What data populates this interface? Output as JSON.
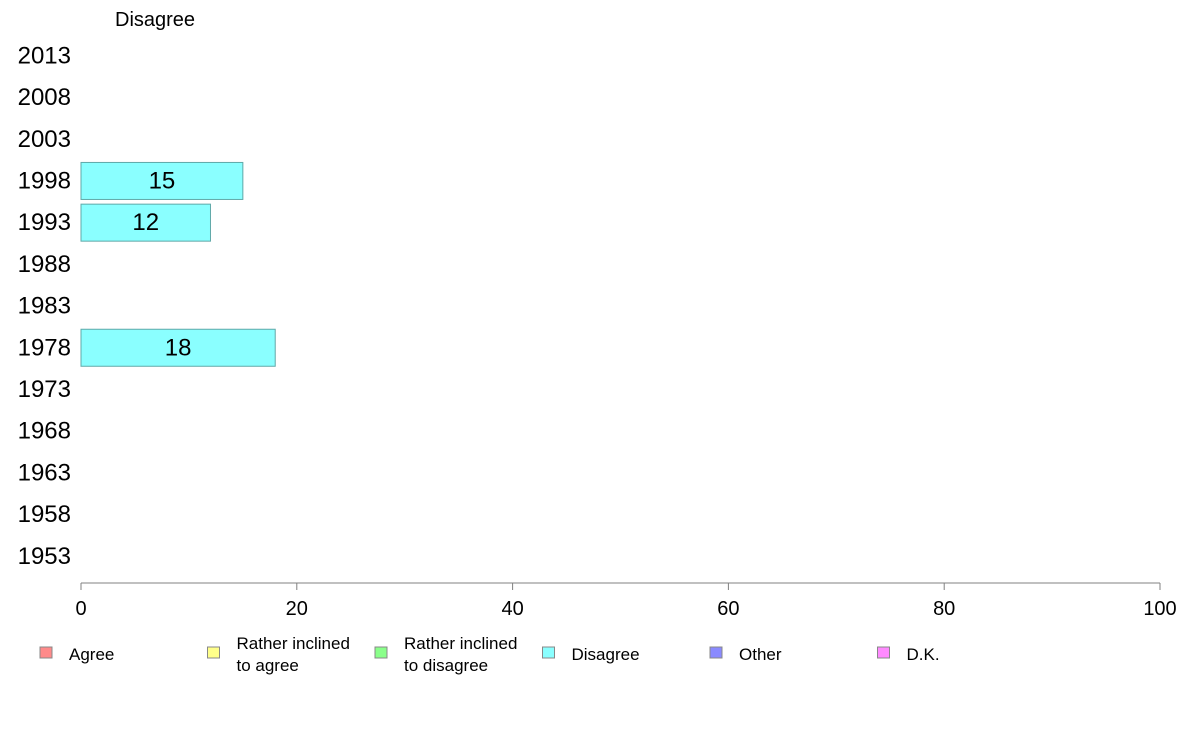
{
  "chart_data": {
    "type": "bar",
    "orientation": "horizontal",
    "title": "Disagree",
    "categories": [
      "2013",
      "2008",
      "2003",
      "1998",
      "1993",
      "1988",
      "1983",
      "1978",
      "1973",
      "1968",
      "1963",
      "1958",
      "1953"
    ],
    "series": [
      {
        "name": "Disagree",
        "values": [
          null,
          null,
          null,
          15,
          12,
          null,
          null,
          18,
          null,
          null,
          null,
          null,
          null
        ]
      }
    ],
    "xlim": [
      0,
      100
    ],
    "xticks": [
      "0",
      "20",
      "40",
      "60",
      "80",
      "100"
    ],
    "grid": false,
    "legend_position": "bottom",
    "legend": [
      {
        "lines": [
          "Agree"
        ],
        "color": "#ff8a8a"
      },
      {
        "lines": [
          "Rather inclined",
          "to agree"
        ],
        "color": "#ffff8a"
      },
      {
        "lines": [
          "Rather inclined",
          "to disagree"
        ],
        "color": "#8aff8a"
      },
      {
        "lines": [
          "Disagree"
        ],
        "color": "#8affff"
      },
      {
        "lines": [
          "Other"
        ],
        "color": "#8a8aff"
      },
      {
        "lines": [
          "D.K."
        ],
        "color": "#ff8aff"
      }
    ],
    "bar_color": "#8affff"
  }
}
